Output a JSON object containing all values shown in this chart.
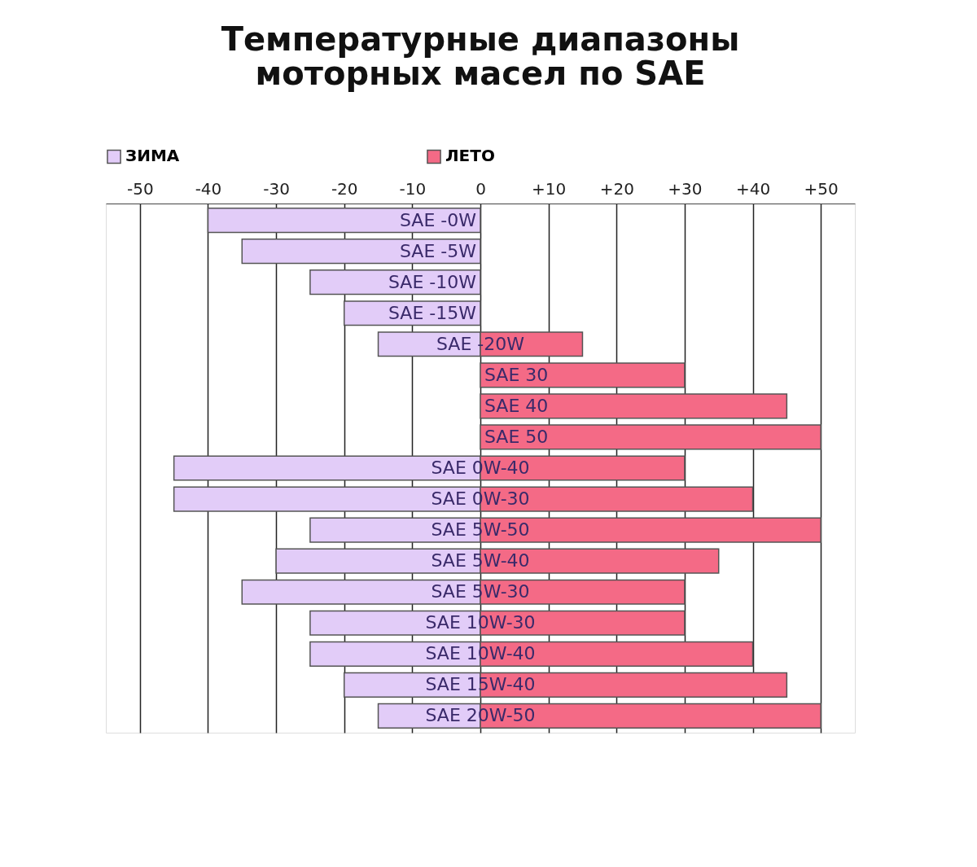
{
  "chart_data": {
    "type": "bar",
    "orientation": "horizontal",
    "stacked": true,
    "title": "Температурные диапазоны моторных масел по SAE",
    "categories": [
      "SAE -0W",
      "SAE -5W",
      "SAE -10W",
      "SAE -15W",
      "SAE -20W",
      "SAE 30",
      "SAE 40",
      "SAE 50",
      "SAE 0W-40",
      "SAE 0W-30",
      "SAE 5W-50",
      "SAE 5W-40",
      "SAE 5W-30",
      "SAE 10W-30",
      "SAE 10W-40",
      "SAE 15W-40",
      "SAE 20W-50"
    ],
    "series": [
      {
        "name": "ЗИМА",
        "color": "#e2ccf8",
        "values": [
          -40,
          -35,
          -25,
          -20,
          -15,
          null,
          null,
          null,
          -45,
          -45,
          -25,
          -30,
          -35,
          -25,
          -25,
          -20,
          -15
        ]
      },
      {
        "name": "ЛЕТО",
        "color": "#f46a86",
        "values": [
          null,
          null,
          null,
          null,
          15,
          30,
          45,
          50,
          30,
          40,
          50,
          35,
          30,
          30,
          40,
          45,
          50
        ]
      }
    ],
    "xlim": [
      -55,
      55
    ],
    "xticks": [
      -50,
      -40,
      -30,
      -20,
      -10,
      0,
      {
        "value": 10,
        "label": "+10"
      },
      {
        "value": 20,
        "label": "+20"
      },
      {
        "value": 30,
        "label": "+30"
      },
      {
        "value": 40,
        "label": "+40"
      },
      {
        "value": 50,
        "label": "+50"
      }
    ],
    "grid": "x",
    "legend": "top",
    "tick_labels": "x"
  }
}
